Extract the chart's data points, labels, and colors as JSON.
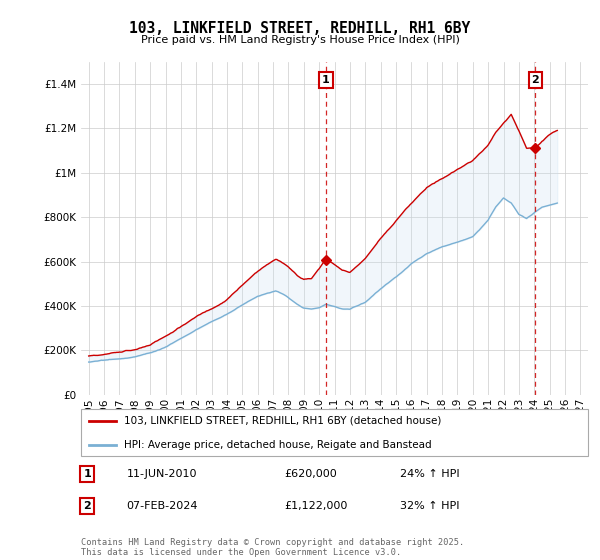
{
  "title": "103, LINKFIELD STREET, REDHILL, RH1 6BY",
  "subtitle": "Price paid vs. HM Land Registry's House Price Index (HPI)",
  "legend_line1": "103, LINKFIELD STREET, REDHILL, RH1 6BY (detached house)",
  "legend_line2": "HPI: Average price, detached house, Reigate and Banstead",
  "annotation1_label": "1",
  "annotation1_date": "11-JUN-2010",
  "annotation1_price": "£620,000",
  "annotation1_hpi": "24% ↑ HPI",
  "annotation1_year": 2010.45,
  "annotation1_value": 620000,
  "annotation2_label": "2",
  "annotation2_date": "07-FEB-2024",
  "annotation2_price": "£1,122,000",
  "annotation2_hpi": "32% ↑ HPI",
  "annotation2_year": 2024.08,
  "annotation2_value": 1122000,
  "footer": "Contains HM Land Registry data © Crown copyright and database right 2025.\nThis data is licensed under the Open Government Licence v3.0.",
  "ylim": [
    0,
    1500000
  ],
  "yticks": [
    0,
    200000,
    400000,
    600000,
    800000,
    1000000,
    1200000,
    1400000
  ],
  "xlim": [
    1994.5,
    2027.5
  ],
  "line_color_property": "#cc0000",
  "line_color_hpi": "#7ab0d4",
  "fill_color": "#c8dff0",
  "grid_color": "#cccccc",
  "background_color": "#ffffff",
  "annotation_line_color": "#cc0000",
  "marker_color": "#cc0000"
}
